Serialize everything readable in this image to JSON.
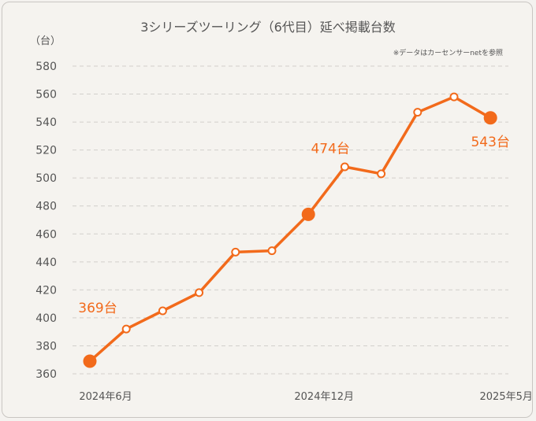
{
  "chart_data": {
    "type": "line",
    "title": "3シリーズツーリング（6代目）延べ掲載台数",
    "ylabel": "（台）",
    "note": "※データはカーセンサーnetを参照",
    "ylim": [
      360,
      580
    ],
    "yticks": [
      360,
      380,
      400,
      420,
      440,
      460,
      480,
      500,
      520,
      540,
      560,
      580
    ],
    "x_tick_labels": [
      {
        "index": 0,
        "label": "2024年6月"
      },
      {
        "index": 6,
        "label": "2024年12月"
      },
      {
        "index": 11,
        "label": "2025年5月"
      }
    ],
    "series": [
      {
        "values": [
          369,
          392,
          405,
          418,
          447,
          448,
          474,
          508,
          503,
          547,
          558,
          543
        ],
        "color": "#f26a1b"
      }
    ],
    "highlights": [
      {
        "index": 0,
        "label": "369台"
      },
      {
        "index": 6,
        "label": "474台"
      },
      {
        "index": 11,
        "label": "543台"
      }
    ]
  }
}
